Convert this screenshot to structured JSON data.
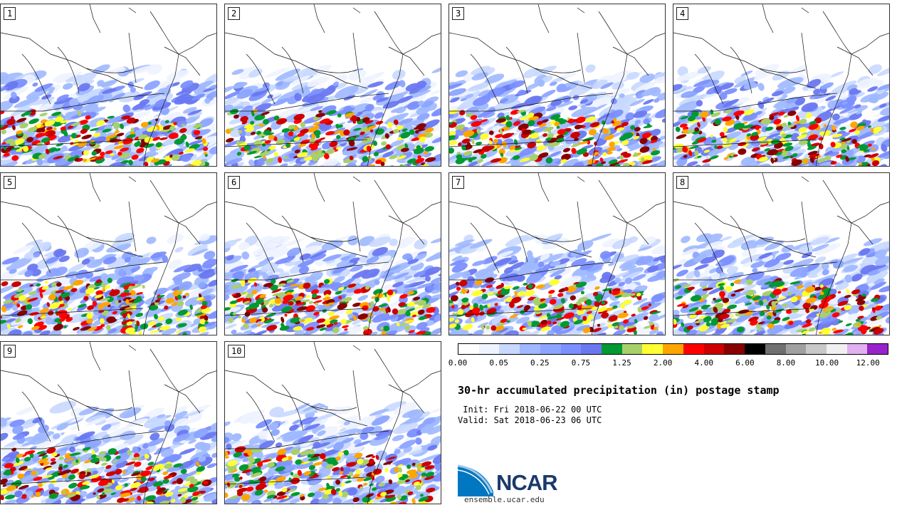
{
  "panels": [
    {
      "label": "1"
    },
    {
      "label": "2"
    },
    {
      "label": "3"
    },
    {
      "label": "4"
    },
    {
      "label": "5"
    },
    {
      "label": "6"
    },
    {
      "label": "7"
    },
    {
      "label": "8"
    },
    {
      "label": "9"
    },
    {
      "label": "10"
    }
  ],
  "colorbar": {
    "colors": [
      "#ffffff",
      "#eef3ff",
      "#c8d8ff",
      "#9fb8ff",
      "#8ca4ff",
      "#7b8fff",
      "#6a78f0",
      "#009933",
      "#a8d06a",
      "#ffff33",
      "#ffa500",
      "#ff0000",
      "#cc0000",
      "#880000",
      "#000000",
      "#707070",
      "#a0a0a0",
      "#c8c8c8",
      "#f0f0f0",
      "#e0b0f0",
      "#9922cc"
    ],
    "ticks": [
      "0.00",
      "0.05",
      "0.25",
      "0.75",
      "1.25",
      "2.00",
      "4.00",
      "6.00",
      "8.00",
      "10.00",
      "12.00"
    ]
  },
  "title": "30-hr accumulated precipitation (in) postage stamp",
  "init": " Init: Fri 2018-06-22 00 UTC",
  "valid": "Valid: Sat 2018-06-23 06 UTC",
  "logo": {
    "text": "NCAR",
    "url": "ensemble.ucar.edu"
  }
}
